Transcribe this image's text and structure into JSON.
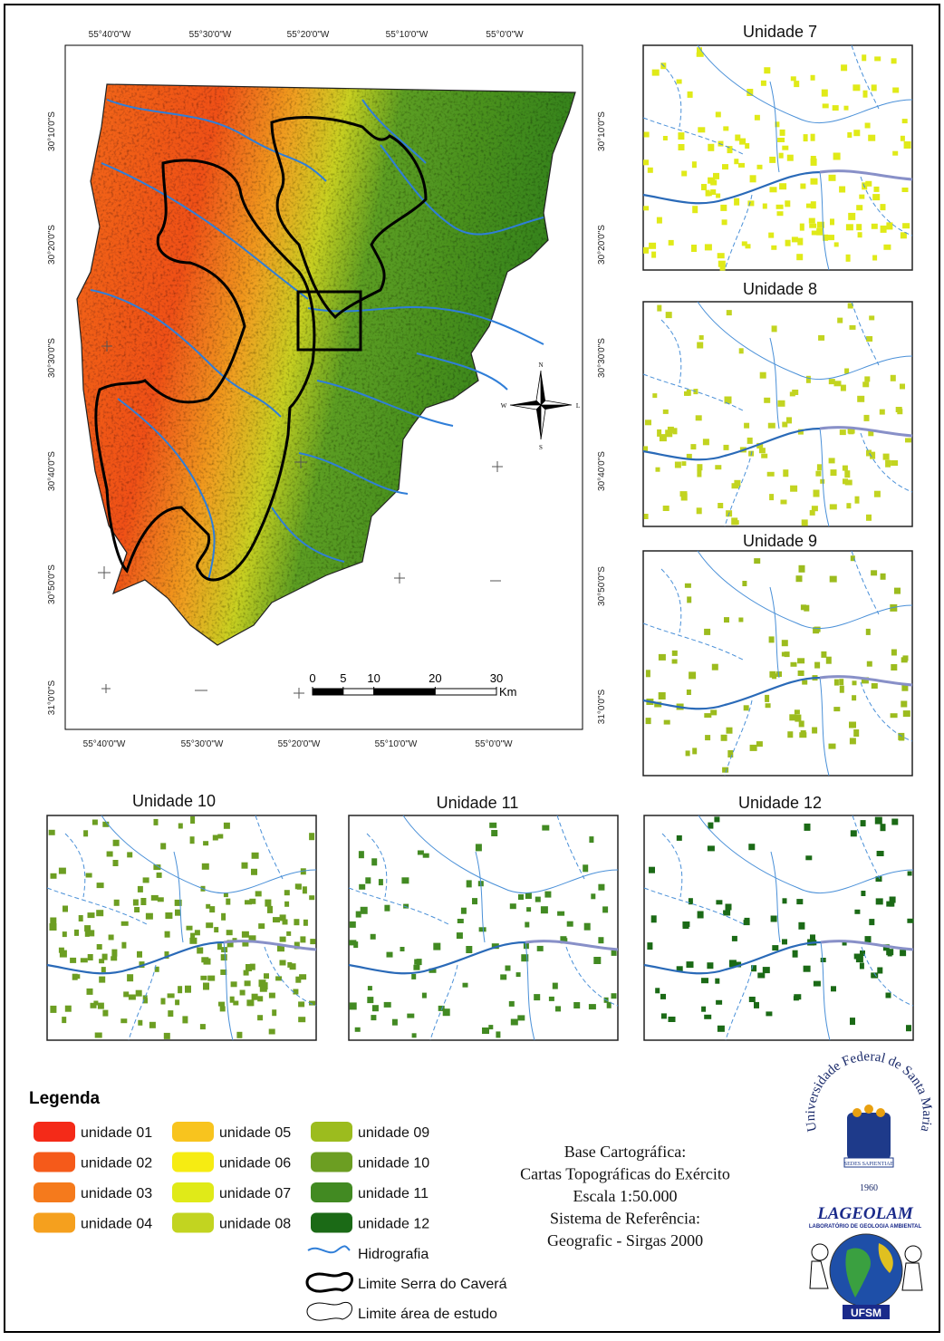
{
  "map": {
    "top_labels": [
      "55°40'0\"W",
      "55°30'0\"W",
      "55°20'0\"W",
      "55°10'0\"W",
      "55°0'0\"W"
    ],
    "bottom_labels": [
      "55°40'0\"W",
      "55°30'0\"W",
      "55°20'0\"W",
      "55°10'0\"W",
      "55°0'0\"W"
    ],
    "left_labels": [
      "30°10'0\"S",
      "30°20'0\"S",
      "30°30'0\"S",
      "30°40'0\"S",
      "30°50'0\"S",
      "31°0'0\"S"
    ],
    "right_labels": [
      "30°10'0\"S",
      "30°20'0\"S",
      "30°30'0\"S",
      "30°40'0\"S",
      "30°50'0\"S",
      "31°0'0\"S"
    ],
    "compass": {
      "n": "N",
      "s": "S",
      "w": "W",
      "e": "L"
    },
    "scale": {
      "ticks": [
        0,
        5,
        10,
        20,
        30
      ],
      "unit": "Km"
    }
  },
  "panels": [
    {
      "title": "Unidade 7"
    },
    {
      "title": "Unidade 8"
    },
    {
      "title": "Unidade 9"
    },
    {
      "title": "Unidade 10"
    },
    {
      "title": "Unidade 11"
    },
    {
      "title": "Unidade 12"
    }
  ],
  "legend": {
    "title": "Legenda",
    "units": [
      {
        "label": "unidade 01",
        "color": "#f42a18"
      },
      {
        "label": "unidade 02",
        "color": "#f55a1a"
      },
      {
        "label": "unidade 03",
        "color": "#f57a1c"
      },
      {
        "label": "unidade 04",
        "color": "#f5a01e"
      },
      {
        "label": "unidade 05",
        "color": "#f8c41e"
      },
      {
        "label": "unidade 06",
        "color": "#f6ec12"
      },
      {
        "label": "unidade 07",
        "color": "#e0ea18"
      },
      {
        "label": "unidade 08",
        "color": "#c2d420"
      },
      {
        "label": "unidade 09",
        "color": "#9cbc1e"
      },
      {
        "label": "unidade 10",
        "color": "#6c9e22"
      },
      {
        "label": "unidade 11",
        "color": "#428a22"
      },
      {
        "label": "unidade 12",
        "color": "#1b6a16"
      }
    ],
    "lines": [
      {
        "label": "Hidrografia"
      },
      {
        "label": "Limite Serra do Caverá"
      },
      {
        "label": "Limite área de estudo"
      }
    ]
  },
  "source": {
    "lines": [
      "Base Cartográfica:",
      "Cartas Topográficas do Exército",
      "Escala 1:50.000",
      "Sistema de Referência:",
      "Geografic - Sirgas 2000"
    ]
  },
  "logos": {
    "ufsm_ring": "Universidade Federal de Santa Maria",
    "motto": "SEDES SAPIENTIAE",
    "year": "1960",
    "lab": "LAGEOLAM",
    "lab_subtitle": "LABORATÓRIO DE GEOLOGIA AMBIENTAL",
    "ufsm": "UFSM"
  }
}
